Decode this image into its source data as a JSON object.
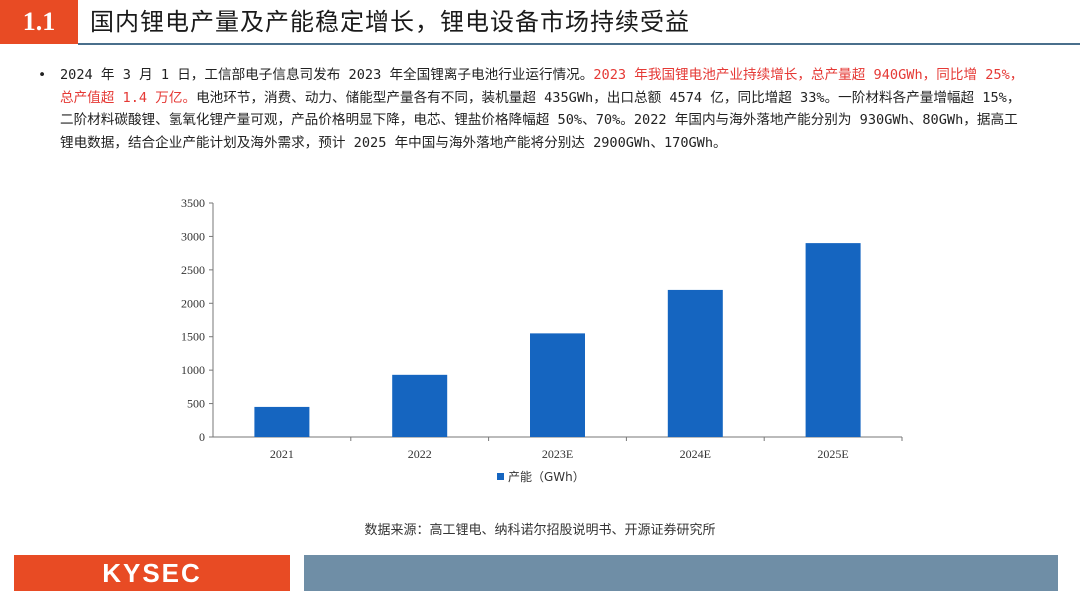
{
  "header": {
    "section_number": "1.1",
    "title": "国内锂电产量及产能稳定增长，锂电设备市场持续受益"
  },
  "bullet": {
    "marker": "•",
    "text_before": "2024 年 3 月 1 日，工信部电子信息司发布 2023 年全国锂离子电池行业运行情况。",
    "text_highlight": "2023 年我国锂电池产业持续增长，总产量超 940GWh，同比增 25%，总产值超 1.4 万亿。",
    "text_after": "电池环节，消费、动力、储能型产量各有不同，装机量超 435GWh，出口总额 4574 亿，同比增超 33%。一阶材料各产量增幅超 15%，二阶材料碳酸锂、氢氧化锂产量可观，产品价格明显下降，电芯、锂盐价格降幅超 50%、70%。2022 年国内与海外落地产能分别为 930GWh、80GWh，据高工锂电数据，结合企业产能计划及海外需求，预计 2025 年中国与海外落地产能将分别达 2900GWh、170GWh。"
  },
  "chart_data": {
    "type": "bar",
    "categories": [
      "2021",
      "2022",
      "2023E",
      "2024E",
      "2025E"
    ],
    "series": [
      {
        "name": "产能（GWh）",
        "values": [
          450,
          930,
          1550,
          2200,
          2900
        ]
      }
    ],
    "yticks": [
      0,
      500,
      1000,
      1500,
      2000,
      2500,
      3000,
      3500
    ],
    "ylim": [
      0,
      3500
    ],
    "title": "",
    "xlabel": "",
    "ylabel": "",
    "bar_color": "#1565c0",
    "legend_position": "bottom-center"
  },
  "source": "数据来源：高工锂电、纳科诺尔招股说明书、开源证券研究所",
  "footer": {
    "logo_text": "KYSEC"
  },
  "colors": {
    "accent": "#e84b24",
    "highlight": "#e53935",
    "footer_bar": "#6f8ea6"
  }
}
